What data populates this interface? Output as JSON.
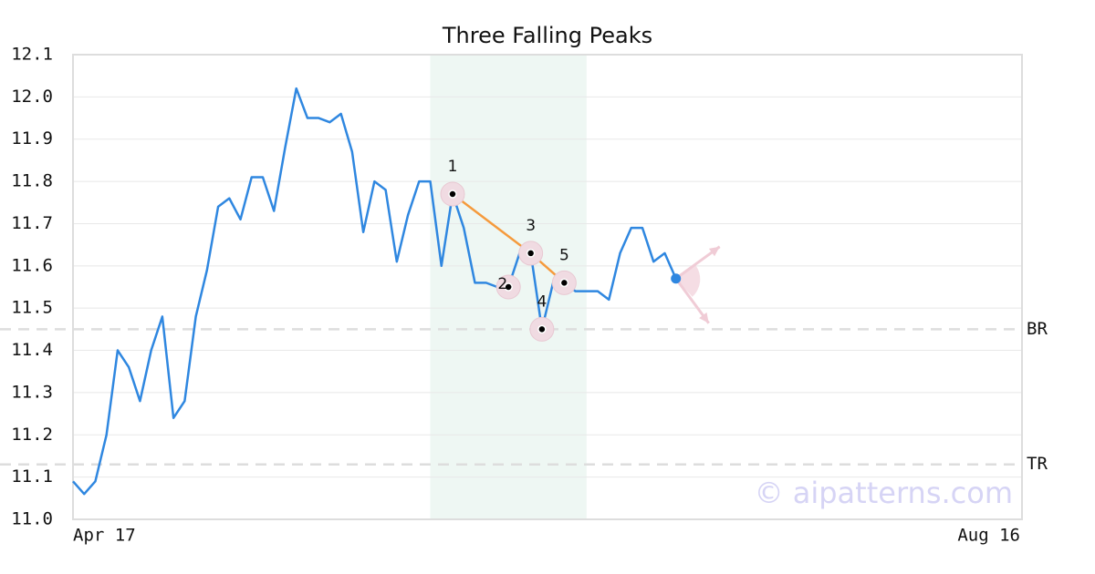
{
  "chart_data": {
    "type": "line",
    "title": "Three Falling Peaks",
    "x": [
      0,
      1,
      2,
      3,
      4,
      5,
      6,
      7,
      8,
      9,
      10,
      11,
      12,
      13,
      14,
      15,
      16,
      17,
      18,
      19,
      20,
      21,
      22,
      23,
      24,
      25,
      26,
      27,
      28,
      29,
      30,
      31,
      32,
      33,
      34,
      35,
      36,
      37,
      38,
      39,
      40,
      41,
      42,
      43,
      44,
      45,
      46,
      47,
      48,
      49,
      50,
      51,
      52,
      53,
      54
    ],
    "series": [
      {
        "color": "#2f87e0",
        "values": [
          11.09,
          11.06,
          11.09,
          11.2,
          11.4,
          11.36,
          11.28,
          11.4,
          11.48,
          11.24,
          11.28,
          11.48,
          11.59,
          11.74,
          11.76,
          11.71,
          11.81,
          11.81,
          11.73,
          11.88,
          12.02,
          11.95,
          11.95,
          11.94,
          11.96,
          11.87,
          11.68,
          11.8,
          11.78,
          11.61,
          11.72,
          11.8,
          11.8,
          11.6,
          11.77,
          11.69,
          11.56,
          11.56,
          11.55,
          11.55,
          11.63,
          11.63,
          11.45,
          11.56,
          11.56,
          11.54,
          11.54,
          11.54,
          11.52,
          11.63,
          11.69,
          11.69,
          11.61,
          11.63,
          11.57
        ]
      }
    ],
    "xlim": [
      0,
      85
    ],
    "xticks": [
      {
        "value": 0,
        "label": "Apr 17"
      },
      {
        "value": 85,
        "label": "Aug 16"
      }
    ],
    "ylim": [
      11.0,
      12.1
    ],
    "yticks": [
      {
        "value": 11,
        "label": "11.0"
      },
      11.1,
      11.2,
      11.3,
      11.4,
      11.5,
      11.6,
      11.7,
      11.8,
      11.9,
      {
        "value": 12,
        "label": "12.0"
      },
      12.1
    ],
    "grid": true,
    "highlight_range": [
      32,
      46
    ],
    "pattern_color": "#f59a3c",
    "pattern_points": [
      {
        "label": "1",
        "x": 34,
        "y": 11.77
      },
      {
        "label": "2",
        "x": 39,
        "y": 11.55
      },
      {
        "label": "3",
        "x": 41,
        "y": 11.63
      },
      {
        "label": "4",
        "x": 42,
        "y": 11.45
      },
      {
        "label": "5",
        "x": 44,
        "y": 11.56
      }
    ],
    "levels": [
      {
        "label": "BR",
        "value": 11.45
      },
      {
        "label": "TR",
        "value": 11.13
      }
    ],
    "watermark": "© aipatterns.com"
  }
}
